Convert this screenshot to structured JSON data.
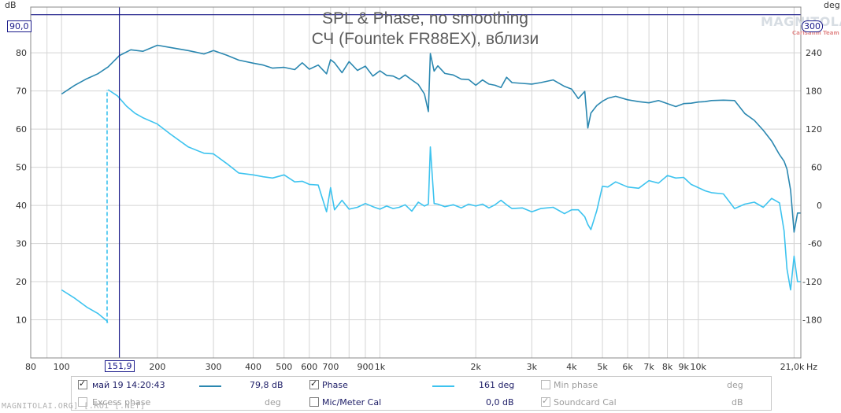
{
  "title": "SPL & Phase, no smoothing",
  "subtitle": "СЧ (Fountek FR88EX), вблизи",
  "watermark": "MAGNITOLA",
  "watermark_sub": "Carlsalim Team",
  "site_text": "MAGNITOLAI.ORG] [.ROI [.NET]",
  "left_unit": "dB",
  "right_unit": "deg",
  "x_unit": "Hz",
  "cursors": {
    "h_value": "90,0",
    "h_right_value": "300",
    "v_value": "151,9"
  },
  "colors": {
    "spl": "#2a87b0",
    "phase": "#3dc3ef",
    "cursor": "#1a1a8a",
    "grid": "#d4d4d4"
  },
  "chart_data": {
    "type": "line",
    "title": "SPL & Phase, no smoothing",
    "subtitle": "СЧ (Fountek FR88EX), вблизи",
    "xlabel": "Hz",
    "ylabel": "dB",
    "y2label": "deg",
    "x_scale": "log",
    "xlim": [
      80,
      21000
    ],
    "ylim": [
      0,
      92
    ],
    "y2lim": [
      -240,
      312
    ],
    "grid": true,
    "x_ticks": [
      {
        "v": 80,
        "label": "80"
      },
      {
        "v": 100,
        "label": "100"
      },
      {
        "v": 200,
        "label": "200"
      },
      {
        "v": 300,
        "label": "300"
      },
      {
        "v": 400,
        "label": "400"
      },
      {
        "v": 500,
        "label": "500"
      },
      {
        "v": 600,
        "label": "600"
      },
      {
        "v": 700,
        "label": "700"
      },
      {
        "v": 900,
        "label": "900"
      },
      {
        "v": 1000,
        "label": "1k"
      },
      {
        "v": 2000,
        "label": "2k"
      },
      {
        "v": 3000,
        "label": "3k"
      },
      {
        "v": 4000,
        "label": "4k"
      },
      {
        "v": 5000,
        "label": "5k"
      },
      {
        "v": 6000,
        "label": "6k"
      },
      {
        "v": 7000,
        "label": "7k"
      },
      {
        "v": 8000,
        "label": "8k"
      },
      {
        "v": 9000,
        "label": "9k"
      },
      {
        "v": 10000,
        "label": "10k"
      },
      {
        "v": 21000,
        "label": "21,0k"
      }
    ],
    "y_ticks": [
      {
        "v": 10,
        "label": "10"
      },
      {
        "v": 20,
        "label": "20"
      },
      {
        "v": 30,
        "label": "30"
      },
      {
        "v": 40,
        "label": "40"
      },
      {
        "v": 50,
        "label": "50"
      },
      {
        "v": 60,
        "label": "60"
      },
      {
        "v": 70,
        "label": "70"
      },
      {
        "v": 80,
        "label": "80"
      }
    ],
    "y2_ticks": [
      {
        "v": -180,
        "label": "-180"
      },
      {
        "v": -120,
        "label": "-120"
      },
      {
        "v": -60,
        "label": "-60"
      },
      {
        "v": 0,
        "label": "0"
      },
      {
        "v": 60,
        "label": "60"
      },
      {
        "v": 120,
        "label": "120"
      },
      {
        "v": 180,
        "label": "180"
      },
      {
        "v": 240,
        "label": "240"
      }
    ],
    "series": [
      {
        "name": "май 19 14:20:43",
        "axis": "left",
        "color": "#2a87b0",
        "x": [
          100,
          110,
          120,
          130,
          140,
          152,
          165,
          180,
          200,
          220,
          250,
          280,
          300,
          330,
          360,
          400,
          430,
          460,
          500,
          540,
          570,
          600,
          640,
          680,
          700,
          720,
          760,
          800,
          850,
          900,
          950,
          1000,
          1050,
          1100,
          1150,
          1200,
          1260,
          1320,
          1380,
          1420,
          1440,
          1480,
          1520,
          1600,
          1700,
          1800,
          1900,
          2000,
          2100,
          2200,
          2300,
          2400,
          2500,
          2600,
          2800,
          3000,
          3200,
          3500,
          3800,
          4000,
          4200,
          4400,
          4500,
          4600,
          4800,
          5000,
          5200,
          5500,
          6000,
          6500,
          7000,
          7500,
          8000,
          8500,
          9000,
          9500,
          10000,
          10500,
          11000,
          12000,
          13000,
          14000,
          15000,
          16000,
          17000,
          18000,
          18600,
          19000,
          19500,
          20000,
          20500,
          21000
        ],
        "y": [
          69.2,
          71.5,
          73.2,
          74.5,
          76.3,
          79.3,
          80.8,
          80.4,
          82.0,
          81.4,
          80.6,
          79.7,
          80.6,
          79.4,
          78.1,
          77.3,
          76.8,
          76.0,
          76.2,
          75.6,
          77.4,
          75.7,
          76.8,
          74.5,
          78.2,
          77.4,
          74.8,
          77.7,
          75.4,
          76.5,
          73.9,
          75.3,
          74.1,
          73.9,
          73.1,
          74.2,
          72.9,
          71.7,
          69.2,
          64.6,
          79.8,
          75.2,
          76.6,
          74.6,
          74.2,
          73.1,
          73.0,
          71.5,
          72.9,
          71.8,
          71.5,
          70.9,
          73.6,
          72.2,
          72.0,
          71.8,
          72.2,
          72.9,
          71.2,
          70.5,
          68.0,
          69.9,
          60.3,
          64.2,
          66.2,
          67.3,
          68.1,
          68.6,
          67.7,
          67.2,
          66.9,
          67.5,
          66.7,
          65.9,
          66.7,
          66.8,
          67.1,
          67.2,
          67.5,
          67.6,
          67.5,
          64.1,
          62.3,
          59.7,
          56.9,
          53.3,
          51.6,
          49.5,
          44.0,
          33.0,
          38.0,
          38.0
        ]
      },
      {
        "name": "Phase",
        "axis": "right",
        "color": "#3dc3ef",
        "x": [
          100,
          110,
          120,
          130,
          139,
          139.5,
          140,
          150,
          160,
          170,
          180,
          200,
          220,
          250,
          280,
          300,
          330,
          360,
          400,
          430,
          460,
          500,
          540,
          570,
          600,
          640,
          680,
          700,
          720,
          760,
          800,
          850,
          900,
          950,
          1000,
          1050,
          1100,
          1150,
          1200,
          1260,
          1320,
          1380,
          1420,
          1440,
          1480,
          1520,
          1600,
          1700,
          1800,
          1900,
          2000,
          2100,
          2200,
          2300,
          2400,
          2500,
          2600,
          2800,
          3000,
          3200,
          3500,
          3800,
          4000,
          4200,
          4400,
          4500,
          4600,
          4800,
          5000,
          5200,
          5500,
          6000,
          6500,
          7000,
          7500,
          8000,
          8500,
          9000,
          9500,
          10000,
          10500,
          11000,
          12000,
          13000,
          14000,
          15000,
          16000,
          17000,
          18000,
          18600,
          19000,
          19500,
          20000,
          20500,
          21000
        ],
        "y": [
          -133,
          -146,
          -160,
          -170,
          -182,
          -185,
          182,
          172,
          156,
          145,
          138,
          128,
          112,
          92,
          82,
          81,
          66,
          51,
          48,
          45,
          43,
          48,
          37,
          38,
          33,
          32,
          -10,
          28,
          -7,
          8,
          -6,
          -3,
          3,
          -2,
          -6,
          -1,
          -5,
          -3,
          1,
          -9,
          5,
          -1,
          2,
          92,
          3,
          2,
          -2,
          1,
          -4,
          2,
          -1,
          2,
          -4,
          1,
          8,
          1,
          -5,
          -4,
          -10,
          -5,
          -3,
          -13,
          -7,
          -7,
          -18,
          -30,
          -38,
          -8,
          30,
          29,
          37,
          29,
          27,
          39,
          35,
          47,
          43,
          44,
          33,
          28,
          23,
          20,
          18,
          -5,
          2,
          5,
          -3,
          11,
          4,
          -40,
          -100,
          -133,
          -80,
          -120,
          -120
        ]
      }
    ],
    "dashed_segment": {
      "x": 139,
      "from_deg": -185,
      "to_deg": 182
    }
  },
  "footer": {
    "row1": {
      "meas_checked": true,
      "meas_label": "май 19 14:20:43",
      "meas_value": "79,8 dB",
      "phase_checked": true,
      "phase_label": "Phase",
      "phase_value": "161 deg",
      "minphase_checked": false,
      "minphase_label": "Min phase",
      "minphase_value": "deg"
    },
    "row2": {
      "excess_checked": false,
      "excess_label": "Excess phase",
      "excess_value": "deg",
      "mic_checked": false,
      "mic_label": "Mic/Meter Cal",
      "mic_value": "0,0 dB",
      "sound_checked": true,
      "sound_label": "Soundcard Cal",
      "sound_value": "dB"
    }
  }
}
